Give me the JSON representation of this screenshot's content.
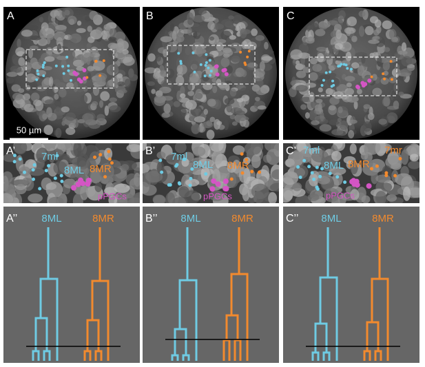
{
  "panels": [
    {
      "label": "A"
    },
    {
      "label": "B"
    },
    {
      "label": "C"
    }
  ],
  "scale_bar": "50 µm",
  "zooms": [
    {
      "label": "A’",
      "annotations": [
        "7ml",
        "8ML",
        "8MR",
        "pPGCs"
      ]
    },
    {
      "label": "B’",
      "annotations": [
        "7ml",
        "8ML",
        "8MR",
        "pPGCs"
      ]
    },
    {
      "label": "C’",
      "annotations": [
        "7ml",
        "8ML",
        "8MR",
        "7mr",
        "pPGCs"
      ]
    }
  ],
  "trees": [
    {
      "label": "A’’",
      "left": "8ML",
      "right": "8MR"
    },
    {
      "label": "B’’",
      "left": "8ML",
      "right": "8MR"
    },
    {
      "label": "C’’",
      "left": "8ML",
      "right": "8MR"
    }
  ]
}
